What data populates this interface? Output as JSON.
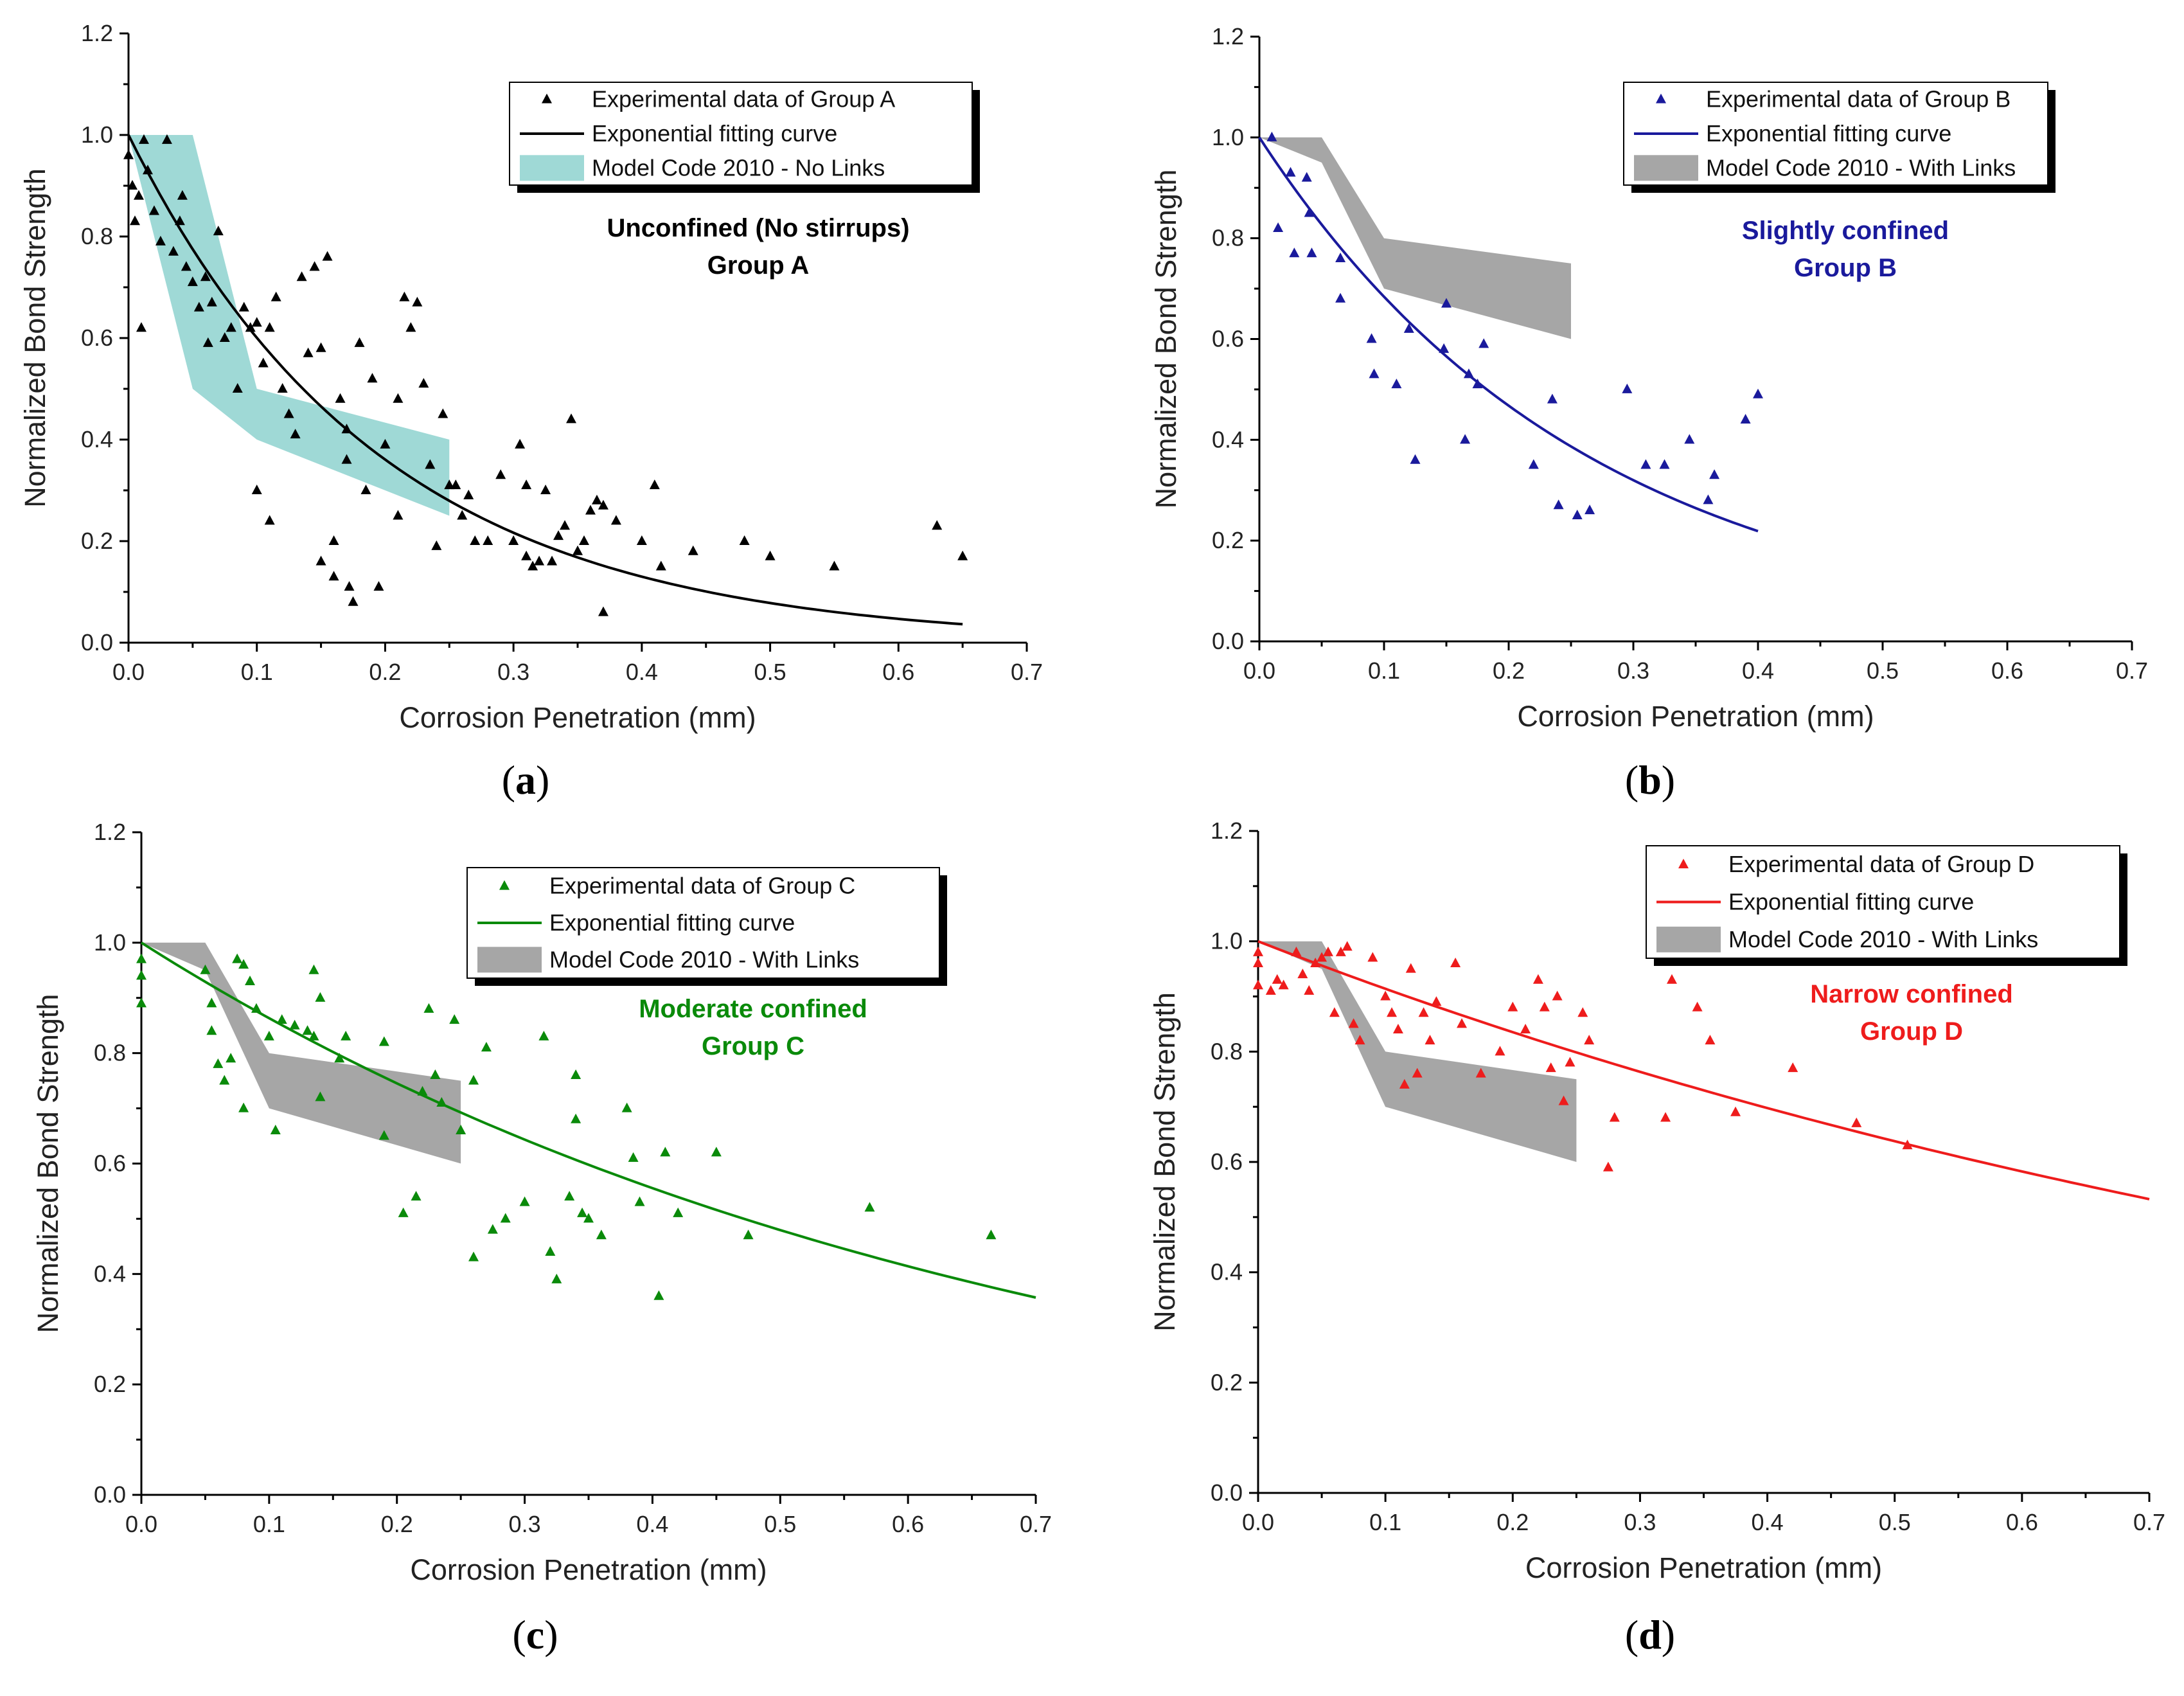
{
  "chart_data": [
    {
      "type": "scatter",
      "panel_label": "a",
      "xlabel": "Corrosion Penetration (mm)",
      "ylabel": "Normalized Bond Strength",
      "xlim": [
        0,
        0.7
      ],
      "ylim": [
        0,
        1.2
      ],
      "xticks": [
        "0.0",
        "0.1",
        "0.2",
        "0.3",
        "0.4",
        "0.5",
        "0.6",
        "0.7"
      ],
      "yticks": [
        "0.0",
        "0.2",
        "0.4",
        "0.6",
        "0.8",
        "1.0",
        "1.2"
      ],
      "color": "#000000",
      "band_color": "#9fd9d6",
      "annotation": [
        "Unconfined (No stirrups)",
        "Group A"
      ],
      "annotation_color": "#000000",
      "legend": {
        "scatter": "Experimental data of Group A",
        "fit": "Exponential fitting curve",
        "band": "Model Code 2010 - No Links"
      },
      "fit": {
        "a": 1.0,
        "b": 5.1,
        "x_end": 0.65
      },
      "band": {
        "upper": [
          [
            0,
            1.0
          ],
          [
            0.05,
            1.0
          ],
          [
            0.1,
            0.5
          ],
          [
            0.25,
            0.4
          ]
        ],
        "lower": [
          [
            0,
            1.0
          ],
          [
            0.05,
            0.5
          ],
          [
            0.1,
            0.4
          ],
          [
            0.25,
            0.25
          ]
        ]
      },
      "points": [
        [
          0.0,
          0.96
        ],
        [
          0.003,
          0.9
        ],
        [
          0.005,
          0.83
        ],
        [
          0.008,
          0.88
        ],
        [
          0.01,
          0.62
        ],
        [
          0.012,
          0.99
        ],
        [
          0.015,
          0.93
        ],
        [
          0.02,
          0.85
        ],
        [
          0.025,
          0.79
        ],
        [
          0.03,
          0.99
        ],
        [
          0.035,
          0.77
        ],
        [
          0.04,
          0.83
        ],
        [
          0.042,
          0.88
        ],
        [
          0.045,
          0.74
        ],
        [
          0.05,
          0.71
        ],
        [
          0.055,
          0.66
        ],
        [
          0.06,
          0.72
        ],
        [
          0.062,
          0.59
        ],
        [
          0.065,
          0.67
        ],
        [
          0.07,
          0.81
        ],
        [
          0.075,
          0.6
        ],
        [
          0.08,
          0.62
        ],
        [
          0.085,
          0.5
        ],
        [
          0.09,
          0.66
        ],
        [
          0.095,
          0.62
        ],
        [
          0.1,
          0.63
        ],
        [
          0.1,
          0.3
        ],
        [
          0.105,
          0.55
        ],
        [
          0.11,
          0.62
        ],
        [
          0.11,
          0.24
        ],
        [
          0.115,
          0.68
        ],
        [
          0.12,
          0.5
        ],
        [
          0.125,
          0.45
        ],
        [
          0.13,
          0.41
        ],
        [
          0.135,
          0.72
        ],
        [
          0.14,
          0.57
        ],
        [
          0.145,
          0.74
        ],
        [
          0.15,
          0.58
        ],
        [
          0.15,
          0.16
        ],
        [
          0.155,
          0.76
        ],
        [
          0.16,
          0.2
        ],
        [
          0.16,
          0.13
        ],
        [
          0.165,
          0.48
        ],
        [
          0.17,
          0.42
        ],
        [
          0.17,
          0.36
        ],
        [
          0.172,
          0.11
        ],
        [
          0.175,
          0.08
        ],
        [
          0.18,
          0.59
        ],
        [
          0.185,
          0.3
        ],
        [
          0.19,
          0.52
        ],
        [
          0.195,
          0.11
        ],
        [
          0.2,
          0.39
        ],
        [
          0.21,
          0.25
        ],
        [
          0.21,
          0.48
        ],
        [
          0.215,
          0.68
        ],
        [
          0.22,
          0.62
        ],
        [
          0.225,
          0.67
        ],
        [
          0.23,
          0.51
        ],
        [
          0.235,
          0.35
        ],
        [
          0.24,
          0.19
        ],
        [
          0.245,
          0.45
        ],
        [
          0.25,
          0.31
        ],
        [
          0.255,
          0.31
        ],
        [
          0.26,
          0.25
        ],
        [
          0.265,
          0.29
        ],
        [
          0.27,
          0.2
        ],
        [
          0.28,
          0.2
        ],
        [
          0.29,
          0.33
        ],
        [
          0.3,
          0.2
        ],
        [
          0.305,
          0.39
        ],
        [
          0.31,
          0.17
        ],
        [
          0.31,
          0.31
        ],
        [
          0.315,
          0.15
        ],
        [
          0.32,
          0.16
        ],
        [
          0.325,
          0.3
        ],
        [
          0.33,
          0.16
        ],
        [
          0.335,
          0.21
        ],
        [
          0.34,
          0.23
        ],
        [
          0.345,
          0.44
        ],
        [
          0.35,
          0.18
        ],
        [
          0.355,
          0.2
        ],
        [
          0.36,
          0.26
        ],
        [
          0.365,
          0.28
        ],
        [
          0.37,
          0.27
        ],
        [
          0.37,
          0.06
        ],
        [
          0.38,
          0.24
        ],
        [
          0.4,
          0.2
        ],
        [
          0.41,
          0.31
        ],
        [
          0.415,
          0.15
        ],
        [
          0.44,
          0.18
        ],
        [
          0.48,
          0.2
        ],
        [
          0.5,
          0.17
        ],
        [
          0.55,
          0.15
        ],
        [
          0.63,
          0.23
        ],
        [
          0.65,
          0.17
        ]
      ]
    },
    {
      "type": "scatter",
      "panel_label": "b",
      "xlabel": "Corrosion Penetration (mm)",
      "ylabel": "Normalized Bond Strength",
      "xlim": [
        0,
        0.7
      ],
      "ylim": [
        0,
        1.2
      ],
      "xticks": [
        "0.0",
        "0.1",
        "0.2",
        "0.3",
        "0.4",
        "0.5",
        "0.6",
        "0.7"
      ],
      "yticks": [
        "0.0",
        "0.2",
        "0.4",
        "0.6",
        "0.8",
        "1.0",
        "1.2"
      ],
      "color": "#1a1a9c",
      "band_color": "#a6a6a6",
      "annotation": [
        "Slightly confined",
        "Group B"
      ],
      "annotation_color": "#1a1a9c",
      "legend": {
        "scatter": "Experimental data of Group B",
        "fit": "Exponential fitting curve",
        "band": "Model Code 2010 - With Links"
      },
      "fit": {
        "a": 1.0,
        "b": 3.8,
        "x_end": 0.4
      },
      "band": {
        "upper": [
          [
            0,
            1.0
          ],
          [
            0.05,
            1.0
          ],
          [
            0.1,
            0.8
          ],
          [
            0.25,
            0.75
          ]
        ],
        "lower": [
          [
            0,
            1.0
          ],
          [
            0.05,
            0.95
          ],
          [
            0.1,
            0.7
          ],
          [
            0.25,
            0.6
          ]
        ]
      },
      "points": [
        [
          0.01,
          1.0
        ],
        [
          0.015,
          0.82
        ],
        [
          0.025,
          0.93
        ],
        [
          0.028,
          0.77
        ],
        [
          0.038,
          0.92
        ],
        [
          0.04,
          0.85
        ],
        [
          0.042,
          0.77
        ],
        [
          0.065,
          0.76
        ],
        [
          0.065,
          0.68
        ],
        [
          0.09,
          0.6
        ],
        [
          0.092,
          0.53
        ],
        [
          0.11,
          0.51
        ],
        [
          0.12,
          0.62
        ],
        [
          0.125,
          0.36
        ],
        [
          0.148,
          0.58
        ],
        [
          0.15,
          0.67
        ],
        [
          0.165,
          0.4
        ],
        [
          0.168,
          0.53
        ],
        [
          0.175,
          0.51
        ],
        [
          0.18,
          0.59
        ],
        [
          0.22,
          0.35
        ],
        [
          0.235,
          0.48
        ],
        [
          0.24,
          0.27
        ],
        [
          0.255,
          0.25
        ],
        [
          0.265,
          0.26
        ],
        [
          0.295,
          0.5
        ],
        [
          0.31,
          0.35
        ],
        [
          0.325,
          0.35
        ],
        [
          0.345,
          0.4
        ],
        [
          0.36,
          0.28
        ],
        [
          0.365,
          0.33
        ],
        [
          0.39,
          0.44
        ],
        [
          0.4,
          0.49
        ]
      ]
    },
    {
      "type": "scatter",
      "panel_label": "c",
      "xlabel": "Corrosion Penetration (mm)",
      "ylabel": "Normalized Bond Strength",
      "xlim": [
        0,
        0.7
      ],
      "ylim": [
        0,
        1.2
      ],
      "xticks": [
        "0.0",
        "0.1",
        "0.2",
        "0.3",
        "0.4",
        "0.5",
        "0.6",
        "0.7"
      ],
      "yticks": [
        "0.0",
        "0.2",
        "0.4",
        "0.6",
        "0.8",
        "1.0",
        "1.2"
      ],
      "color": "#0a8a0a",
      "band_color": "#a6a6a6",
      "annotation": [
        "Moderate confined",
        "Group C"
      ],
      "annotation_color": "#0a8a0a",
      "legend": {
        "scatter": "Experimental data of Group C",
        "fit": "Exponential fitting curve",
        "band": "Model Code 2010 - With Links"
      },
      "fit": {
        "a": 1.0,
        "b": 1.47,
        "x_end": 0.7
      },
      "band": {
        "upper": [
          [
            0,
            1.0
          ],
          [
            0.05,
            1.0
          ],
          [
            0.1,
            0.8
          ],
          [
            0.25,
            0.75
          ]
        ],
        "lower": [
          [
            0,
            1.0
          ],
          [
            0.05,
            0.95
          ],
          [
            0.1,
            0.7
          ],
          [
            0.25,
            0.6
          ]
        ]
      },
      "points": [
        [
          0.0,
          0.97
        ],
        [
          0.0,
          0.94
        ],
        [
          0.0,
          0.89
        ],
        [
          0.05,
          0.95
        ],
        [
          0.055,
          0.89
        ],
        [
          0.055,
          0.84
        ],
        [
          0.06,
          0.78
        ],
        [
          0.065,
          0.75
        ],
        [
          0.07,
          0.79
        ],
        [
          0.075,
          0.97
        ],
        [
          0.08,
          0.96
        ],
        [
          0.08,
          0.7
        ],
        [
          0.085,
          0.93
        ],
        [
          0.09,
          0.88
        ],
        [
          0.1,
          0.83
        ],
        [
          0.105,
          0.66
        ],
        [
          0.11,
          0.86
        ],
        [
          0.12,
          0.85
        ],
        [
          0.13,
          0.84
        ],
        [
          0.135,
          0.83
        ],
        [
          0.135,
          0.95
        ],
        [
          0.14,
          0.9
        ],
        [
          0.14,
          0.72
        ],
        [
          0.155,
          0.79
        ],
        [
          0.16,
          0.83
        ],
        [
          0.19,
          0.82
        ],
        [
          0.19,
          0.65
        ],
        [
          0.205,
          0.51
        ],
        [
          0.215,
          0.54
        ],
        [
          0.22,
          0.73
        ],
        [
          0.225,
          0.88
        ],
        [
          0.23,
          0.76
        ],
        [
          0.235,
          0.71
        ],
        [
          0.245,
          0.86
        ],
        [
          0.25,
          0.66
        ],
        [
          0.26,
          0.75
        ],
        [
          0.26,
          0.43
        ],
        [
          0.27,
          0.81
        ],
        [
          0.275,
          0.48
        ],
        [
          0.285,
          0.5
        ],
        [
          0.3,
          0.53
        ],
        [
          0.315,
          0.83
        ],
        [
          0.32,
          0.44
        ],
        [
          0.325,
          0.39
        ],
        [
          0.335,
          0.54
        ],
        [
          0.34,
          0.68
        ],
        [
          0.34,
          0.76
        ],
        [
          0.345,
          0.51
        ],
        [
          0.35,
          0.5
        ],
        [
          0.36,
          0.47
        ],
        [
          0.38,
          0.7
        ],
        [
          0.385,
          0.61
        ],
        [
          0.39,
          0.53
        ],
        [
          0.405,
          0.36
        ],
        [
          0.41,
          0.62
        ],
        [
          0.42,
          0.51
        ],
        [
          0.45,
          0.62
        ],
        [
          0.475,
          0.47
        ],
        [
          0.57,
          0.52
        ],
        [
          0.665,
          0.47
        ]
      ]
    },
    {
      "type": "scatter",
      "panel_label": "d",
      "xlabel": "Corrosion Penetration (mm)",
      "ylabel": "Normalized Bond Strength",
      "xlim": [
        0,
        0.7
      ],
      "ylim": [
        0,
        1.2
      ],
      "xticks": [
        "0.0",
        "0.1",
        "0.2",
        "0.3",
        "0.4",
        "0.5",
        "0.6",
        "0.7"
      ],
      "yticks": [
        "0.0",
        "0.2",
        "0.4",
        "0.6",
        "0.8",
        "1.0",
        "1.2"
      ],
      "color": "#ee1c1c",
      "band_color": "#a6a6a6",
      "annotation": [
        "Narrow confined",
        "Group D"
      ],
      "annotation_color": "#ee1c1c",
      "legend": {
        "scatter": "Experimental data of Group D",
        "fit": "Exponential fitting curve",
        "band": "Model Code 2010 - With Links"
      },
      "fit": {
        "a": 1.0,
        "b": 0.9,
        "x_end": 0.7
      },
      "band": {
        "upper": [
          [
            0,
            1.0
          ],
          [
            0.05,
            1.0
          ],
          [
            0.1,
            0.8
          ],
          [
            0.25,
            0.75
          ]
        ],
        "lower": [
          [
            0,
            1.0
          ],
          [
            0.05,
            0.95
          ],
          [
            0.1,
            0.7
          ],
          [
            0.25,
            0.6
          ]
        ]
      },
      "points": [
        [
          0.0,
          0.98
        ],
        [
          0.0,
          0.96
        ],
        [
          0.0,
          0.92
        ],
        [
          0.01,
          0.91
        ],
        [
          0.015,
          0.93
        ],
        [
          0.02,
          0.92
        ],
        [
          0.03,
          0.98
        ],
        [
          0.035,
          0.94
        ],
        [
          0.04,
          0.91
        ],
        [
          0.045,
          0.96
        ],
        [
          0.05,
          0.97
        ],
        [
          0.055,
          0.98
        ],
        [
          0.06,
          0.87
        ],
        [
          0.065,
          0.98
        ],
        [
          0.07,
          0.99
        ],
        [
          0.075,
          0.85
        ],
        [
          0.08,
          0.82
        ],
        [
          0.09,
          0.97
        ],
        [
          0.1,
          0.9
        ],
        [
          0.105,
          0.87
        ],
        [
          0.11,
          0.84
        ],
        [
          0.115,
          0.74
        ],
        [
          0.12,
          0.95
        ],
        [
          0.125,
          0.76
        ],
        [
          0.13,
          0.87
        ],
        [
          0.135,
          0.82
        ],
        [
          0.14,
          0.89
        ],
        [
          0.155,
          0.96
        ],
        [
          0.16,
          0.85
        ],
        [
          0.175,
          0.76
        ],
        [
          0.19,
          0.8
        ],
        [
          0.2,
          0.88
        ],
        [
          0.21,
          0.84
        ],
        [
          0.22,
          0.93
        ],
        [
          0.225,
          0.88
        ],
        [
          0.23,
          0.77
        ],
        [
          0.235,
          0.9
        ],
        [
          0.24,
          0.71
        ],
        [
          0.245,
          0.78
        ],
        [
          0.255,
          0.87
        ],
        [
          0.26,
          0.82
        ],
        [
          0.275,
          0.59
        ],
        [
          0.28,
          0.68
        ],
        [
          0.32,
          0.68
        ],
        [
          0.325,
          0.93
        ],
        [
          0.345,
          0.88
        ],
        [
          0.355,
          0.82
        ],
        [
          0.375,
          0.69
        ],
        [
          0.42,
          0.77
        ],
        [
          0.47,
          0.67
        ],
        [
          0.51,
          0.63
        ]
      ]
    }
  ]
}
